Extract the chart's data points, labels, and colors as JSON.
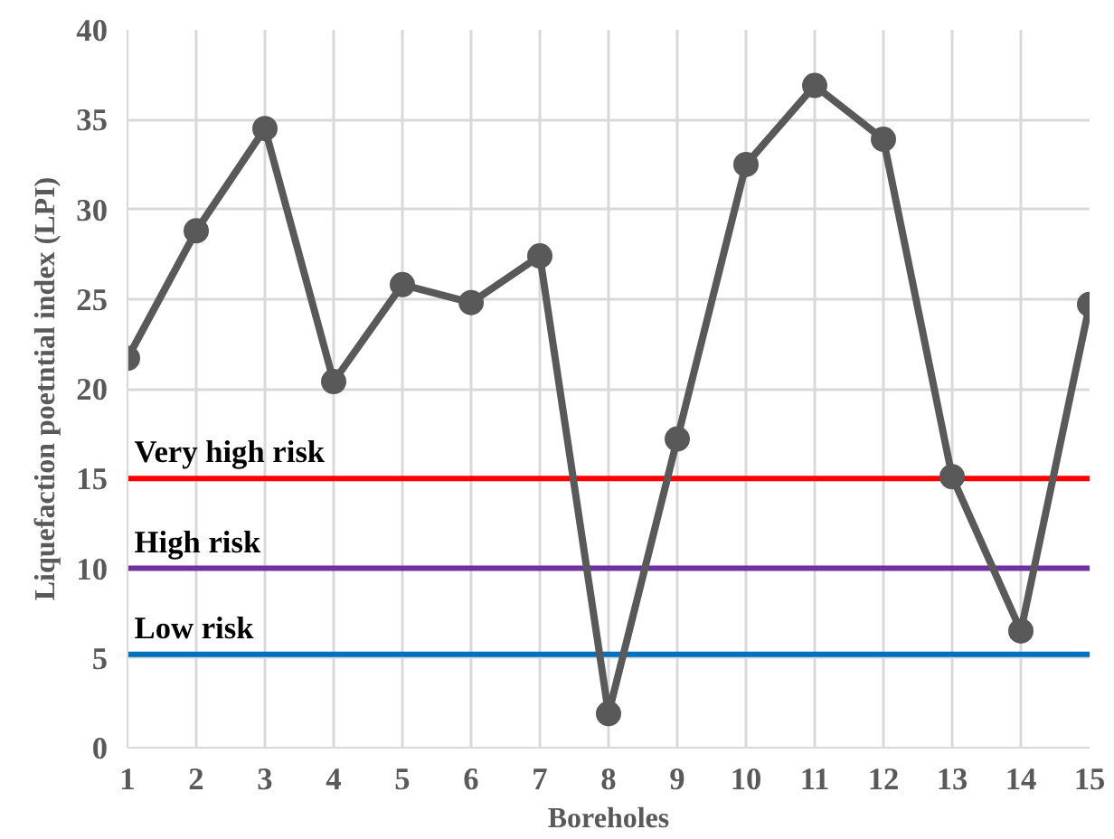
{
  "chart_data": {
    "type": "line",
    "xlabel": "Boreholes",
    "ylabel": "Liquefaction poetntial index (LPI)",
    "x": [
      1,
      2,
      3,
      4,
      5,
      6,
      7,
      8,
      9,
      10,
      11,
      12,
      13,
      14,
      15
    ],
    "series": [
      {
        "color": "#595959",
        "values": [
          21.7,
          28.8,
          34.5,
          20.4,
          25.8,
          24.8,
          27.4,
          1.9,
          17.2,
          32.5,
          36.9,
          33.9,
          15.1,
          6.5,
          24.7
        ]
      }
    ],
    "xlim": [
      1,
      15
    ],
    "xticks": [
      1,
      2,
      3,
      4,
      5,
      6,
      7,
      8,
      9,
      10,
      11,
      12,
      13,
      14,
      15
    ],
    "ylim": [
      0,
      40
    ],
    "yticks": [
      0,
      5,
      10,
      15,
      20,
      25,
      30,
      35,
      40
    ],
    "grid": true,
    "marker": "circle",
    "line_style": "solid",
    "ref_lines": [
      {
        "axis": "y",
        "value": 15,
        "label": "Very high risk",
        "color": "#ff0000"
      },
      {
        "axis": "y",
        "value": 10,
        "label": "High risk",
        "color": "#7030a0"
      },
      {
        "axis": "y",
        "value": 5.2,
        "label": "Low risk",
        "color": "#0070c0"
      }
    ]
  }
}
